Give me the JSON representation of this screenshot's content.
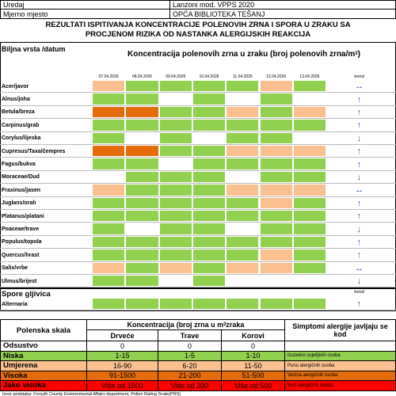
{
  "header": {
    "rows": [
      [
        "Uredaj",
        "Lanzoni mod. VPPS 2020"
      ],
      [
        "Mjerno mjesto",
        "OPĆA BIBLIOTEKA TEŠANJ"
      ]
    ],
    "title": [
      "REZULTATI ISPITIVANJA KONCENTRACIJE POLENOVIH ZRNA I SPORA U ZRAKU SA",
      "PROCJENOM RIZIKA OD NASTANKA ALERGIJSKIH REAKCIJA"
    ]
  },
  "pollen_table": {
    "corner": "Biljna vrsta /datum",
    "heading": "Koncentracija polenovih zrna u zraku (broj polenovih zrna/m",
    "heading_sup": "3",
    "heading_end": ")",
    "dates": [
      "07.04.2026",
      "08.04.2026",
      "09.04.2026",
      "10.04.2026",
      "11.04.2026",
      "12.04.2026",
      "13.04.2026"
    ],
    "trend_label": "trend",
    "rows": [
      {
        "name": "Acer/javor",
        "cells": [
          "#fac090",
          "#92d050",
          "#92d050",
          "#92d050",
          "#92d050",
          "#fac090",
          "#92d050"
        ],
        "trend": "↔"
      },
      {
        "name": "Alnus/joha",
        "cells": [
          "#92d050",
          "#92d050",
          "#ffffff",
          "#92d050",
          "#ffffff",
          "#92d050",
          "#ffffff"
        ],
        "trend": "↑"
      },
      {
        "name": "Betula/breza",
        "cells": [
          "#e46c0a",
          "#e46c0a",
          "#92d050",
          "#92d050",
          "#fac090",
          "#92d050",
          "#fac090"
        ],
        "trend": "↑"
      },
      {
        "name": "Carpinus/grab",
        "cells": [
          "#92d050",
          "#92d050",
          "#92d050",
          "#92d050",
          "#92d050",
          "#92d050",
          "#92d050"
        ],
        "trend": "↑"
      },
      {
        "name": "Corylus/lijeska",
        "cells": [
          "#92d050",
          "#ffffff",
          "#92d050",
          "#ffffff",
          "#92d050",
          "#92d050",
          "#ffffff"
        ],
        "trend": "↓"
      },
      {
        "name": "Cupresus/Taxa/čempres",
        "cells": [
          "#e46c0a",
          "#e46c0a",
          "#92d050",
          "#92d050",
          "#fac090",
          "#fac090",
          "#fac090"
        ],
        "trend": "↑"
      },
      {
        "name": "Fagus/bukva",
        "cells": [
          "#92d050",
          "#92d050",
          "#ffffff",
          "#92d050",
          "#92d050",
          "#92d050",
          "#92d050"
        ],
        "trend": "↑"
      },
      {
        "name": "Moraceae/Dud",
        "cells": [
          "#ffffff",
          "#92d050",
          "#92d050",
          "#92d050",
          "#ffffff",
          "#92d050",
          "#92d050"
        ],
        "trend": "↓"
      },
      {
        "name": "Fraxinus/jasen",
        "cells": [
          "#fac090",
          "#92d050",
          "#92d050",
          "#92d050",
          "#fac090",
          "#fac090",
          "#fac090"
        ],
        "trend": "↔"
      },
      {
        "name": "Juglans/orah",
        "cells": [
          "#92d050",
          "#92d050",
          "#92d050",
          "#92d050",
          "#92d050",
          "#fac090",
          "#92d050"
        ],
        "trend": "↑"
      },
      {
        "name": "Platanus/platani",
        "cells": [
          "#92d050",
          "#92d050",
          "#92d050",
          "#92d050",
          "#92d050",
          "#92d050",
          "#92d050"
        ],
        "trend": "↑"
      },
      {
        "name": "Poaceae/trave",
        "cells": [
          "#92d050",
          "#ffffff",
          "#92d050",
          "#92d050",
          "#ffffff",
          "#92d050",
          "#92d050"
        ],
        "trend": "↓"
      },
      {
        "name": "Populus/topola",
        "cells": [
          "#92d050",
          "#92d050",
          "#92d050",
          "#92d050",
          "#92d050",
          "#92d050",
          "#92d050"
        ],
        "trend": "↑"
      },
      {
        "name": "Quercus/hrast",
        "cells": [
          "#92d050",
          "#92d050",
          "#92d050",
          "#92d050",
          "#92d050",
          "#fac090",
          "#92d050"
        ],
        "trend": "↑"
      },
      {
        "name": "Salix/vrbe",
        "cells": [
          "#fac090",
          "#92d050",
          "#fac090",
          "#92d050",
          "#fac090",
          "#fac090",
          "#92d050"
        ],
        "trend": "↔"
      },
      {
        "name": "Ulmus/brijest",
        "cells": [
          "#92d050",
          "#92d050",
          "#ffffff",
          "#92d050",
          "#ffffff",
          "#ffffff",
          "#ffffff"
        ],
        "trend": "↓"
      }
    ]
  },
  "spore_table": {
    "title": "Spore gljivica",
    "trend_label": "trend",
    "rows": [
      {
        "name": "Alternaria",
        "cells": [
          "#92d050",
          "#92d050",
          "#92d050",
          "#92d050",
          "#92d050",
          "#92d050",
          "#92d050"
        ],
        "trend": "↑"
      }
    ]
  },
  "scale_table": {
    "corner": "Polenska skala",
    "heading": "Koncentracija (broj zrna u m",
    "heading_sup": "3",
    "heading_end": " zraka",
    "symptoms_heading": "Simptomi alergije javljaju se kod",
    "columns": [
      "Drveće",
      "Trave",
      "Korovi"
    ],
    "rows": [
      {
        "name": "Odsustvo",
        "values": [
          "0",
          "0",
          "0"
        ],
        "color": "#ffffff"
      },
      {
        "name": "Niska",
        "values": [
          "1-15",
          "1-5",
          "1-10"
        ],
        "symptom": "Izuzetno osjetljivih osoba",
        "color": "#92d050"
      },
      {
        "name": "Umjerena",
        "values": [
          "16-90",
          "6-20",
          "11-50"
        ],
        "symptom": "Puno alergičnih osoba",
        "color": "#fac090"
      },
      {
        "name": "Visoka",
        "values": [
          "91-1500",
          "21-200",
          "51-500"
        ],
        "symptom": "Većina alergičnih osoba",
        "color": "#e46c0a"
      },
      {
        "name": "Jako visoka",
        "values": [
          "Više od 1500",
          "Više od 200",
          "Više od 500"
        ],
        "symptom": "Svih alergičnih osoba",
        "color": "#ff0000"
      }
    ],
    "footer": "Izvor podataka: Forsyth County Environmental Affairs department, Pollen Rating Scale(PRS)"
  }
}
